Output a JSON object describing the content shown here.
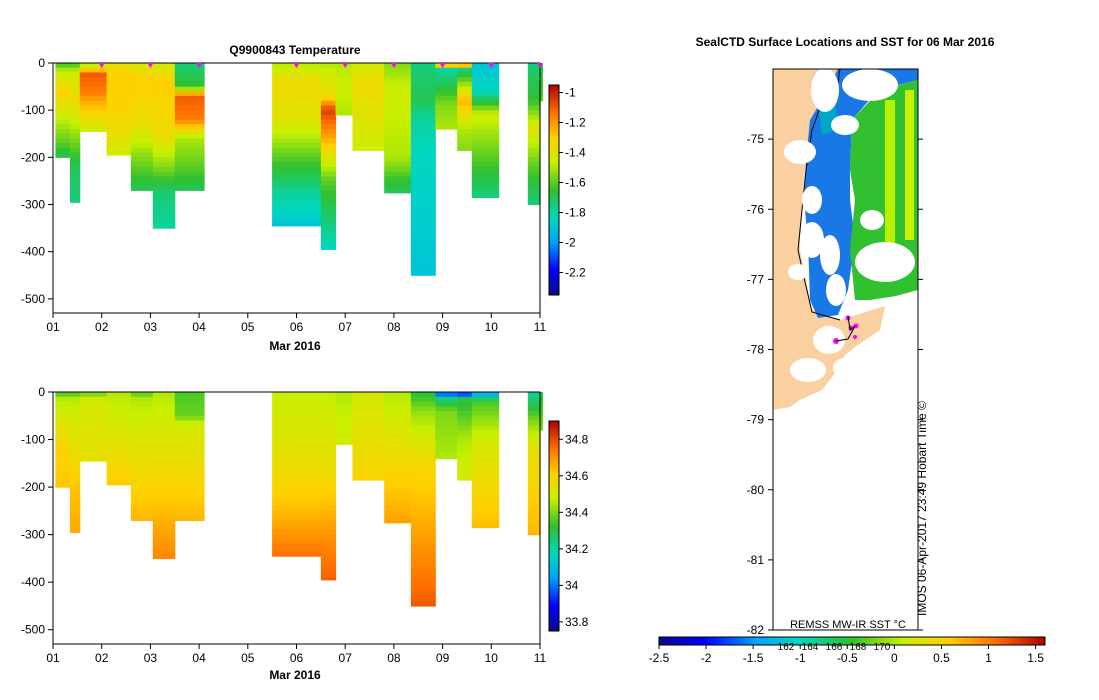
{
  "chart_data": [
    {
      "type": "heatmap",
      "title": "Q9900843  Temperature",
      "xlabel": "Mar 2016",
      "ylabel": "",
      "xlim": [
        1,
        11
      ],
      "ylim": [
        -530,
        0
      ],
      "x_tick_labels": [
        "01",
        "02",
        "03",
        "04",
        "05",
        "06",
        "07",
        "08",
        "09",
        "10",
        "11"
      ],
      "y_tick_labels": [
        "0",
        "-100",
        "-200",
        "-300",
        "-400",
        "-500"
      ],
      "colorbar": {
        "min": -2.35,
        "max": -0.95,
        "tick_labels": [
          "-1",
          "-1.2",
          "-1.4",
          "-1.6",
          "-1.8",
          "-2",
          "-2.2"
        ]
      },
      "profiles": [
        {
          "x0": 1.05,
          "x1": 1.35,
          "depth": 200,
          "levels": [
            [
              0,
              -1.65
            ],
            [
              15,
              -1.5
            ],
            [
              60,
              -1.3
            ],
            [
              110,
              -1.45
            ],
            [
              170,
              -1.6
            ],
            [
              200,
              -1.7
            ]
          ]
        },
        {
          "x0": 1.35,
          "x1": 1.55,
          "depth": 295,
          "levels": [
            [
              0,
              -1.65
            ],
            [
              20,
              -1.45
            ],
            [
              80,
              -1.35
            ],
            [
              140,
              -1.5
            ],
            [
              220,
              -1.7
            ],
            [
              295,
              -1.75
            ]
          ]
        },
        {
          "x0": 1.55,
          "x1": 2.1,
          "depth": 145,
          "levels": [
            [
              0,
              -1.55
            ],
            [
              25,
              -1.1
            ],
            [
              60,
              -1.15
            ],
            [
              100,
              -1.3
            ],
            [
              145,
              -1.45
            ]
          ]
        },
        {
          "x0": 2.1,
          "x1": 2.6,
          "depth": 195,
          "levels": [
            [
              0,
              -1.4
            ],
            [
              20,
              -1.3
            ],
            [
              80,
              -1.3
            ],
            [
              140,
              -1.35
            ],
            [
              195,
              -1.45
            ]
          ]
        },
        {
          "x0": 2.6,
          "x1": 3.05,
          "depth": 270,
          "levels": [
            [
              0,
              -1.45
            ],
            [
              30,
              -1.3
            ],
            [
              120,
              -1.35
            ],
            [
              200,
              -1.55
            ],
            [
              270,
              -1.7
            ]
          ]
        },
        {
          "x0": 3.05,
          "x1": 3.5,
          "depth": 350,
          "levels": [
            [
              0,
              -1.45
            ],
            [
              40,
              -1.3
            ],
            [
              150,
              -1.35
            ],
            [
              220,
              -1.55
            ],
            [
              280,
              -1.75
            ],
            [
              350,
              -1.8
            ]
          ]
        },
        {
          "x0": 3.5,
          "x1": 4.1,
          "depth": 270,
          "levels": [
            [
              0,
              -1.75
            ],
            [
              50,
              -1.65
            ],
            [
              70,
              -1.1
            ],
            [
              120,
              -1.15
            ],
            [
              160,
              -1.5
            ],
            [
              220,
              -1.6
            ],
            [
              270,
              -1.7
            ]
          ]
        },
        {
          "x0": 5.5,
          "x1": 6.5,
          "depth": 345,
          "levels": [
            [
              0,
              -1.5
            ],
            [
              40,
              -1.35
            ],
            [
              120,
              -1.4
            ],
            [
              200,
              -1.6
            ],
            [
              280,
              -1.8
            ],
            [
              345,
              -1.9
            ]
          ]
        },
        {
          "x0": 6.5,
          "x1": 6.8,
          "depth": 395,
          "levels": [
            [
              0,
              -1.5
            ],
            [
              70,
              -1.35
            ],
            [
              100,
              -1.05
            ],
            [
              150,
              -1.2
            ],
            [
              250,
              -1.6
            ],
            [
              395,
              -1.85
            ]
          ]
        },
        {
          "x0": 6.8,
          "x1": 7.15,
          "depth": 110,
          "levels": [
            [
              0,
              -1.5
            ],
            [
              50,
              -1.45
            ],
            [
              110,
              -1.5
            ]
          ]
        },
        {
          "x0": 7.15,
          "x1": 7.8,
          "depth": 185,
          "levels": [
            [
              0,
              -1.45
            ],
            [
              40,
              -1.35
            ],
            [
              120,
              -1.4
            ],
            [
              185,
              -1.45
            ]
          ]
        },
        {
          "x0": 7.8,
          "x1": 8.35,
          "depth": 275,
          "levels": [
            [
              0,
              -1.55
            ],
            [
              60,
              -1.45
            ],
            [
              200,
              -1.5
            ],
            [
              250,
              -1.65
            ],
            [
              275,
              -1.7
            ]
          ]
        },
        {
          "x0": 8.35,
          "x1": 8.85,
          "depth": 450,
          "levels": [
            [
              0,
              -1.75
            ],
            [
              80,
              -1.7
            ],
            [
              120,
              -1.8
            ],
            [
              200,
              -1.85
            ],
            [
              450,
              -1.9
            ]
          ]
        },
        {
          "x0": 8.85,
          "x1": 9.3,
          "depth": 140,
          "levels": [
            [
              0,
              -1.05
            ],
            [
              15,
              -1.8
            ],
            [
              90,
              -1.55
            ],
            [
              140,
              -1.5
            ]
          ]
        },
        {
          "x0": 9.3,
          "x1": 9.6,
          "depth": 185,
          "levels": [
            [
              0,
              -1.05
            ],
            [
              15,
              -1.75
            ],
            [
              80,
              -1.25
            ],
            [
              140,
              -1.5
            ],
            [
              185,
              -1.55
            ]
          ]
        },
        {
          "x0": 9.6,
          "x1": 10.15,
          "depth": 285,
          "levels": [
            [
              0,
              -1.9
            ],
            [
              60,
              -1.85
            ],
            [
              110,
              -1.45
            ],
            [
              200,
              -1.6
            ],
            [
              285,
              -1.75
            ]
          ]
        },
        {
          "x0": 10.75,
          "x1": 11.0,
          "depth": 300,
          "levels": [
            [
              0,
              -1.75
            ],
            [
              80,
              -1.65
            ],
            [
              140,
              -1.4
            ],
            [
              220,
              -1.6
            ],
            [
              300,
              -1.75
            ]
          ]
        },
        {
          "x0": 11.0,
          "x1": 11.05,
          "depth": 80,
          "levels": [
            [
              0,
              -1.7
            ],
            [
              80,
              -1.6
            ]
          ]
        }
      ]
    },
    {
      "type": "heatmap",
      "title": "",
      "xlabel": "Mar 2016",
      "ylabel": "",
      "xlim": [
        1,
        11
      ],
      "ylim": [
        -530,
        0
      ],
      "x_tick_labels": [
        "01",
        "02",
        "03",
        "04",
        "05",
        "06",
        "07",
        "08",
        "09",
        "10",
        "11"
      ],
      "y_tick_labels": [
        "0",
        "-100",
        "-200",
        "-300",
        "-400",
        "-500"
      ],
      "colorbar": {
        "min": 33.75,
        "max": 34.9,
        "tick_labels": [
          "34.8",
          "34.6",
          "34.4",
          "34.2",
          "34",
          "33.8"
        ]
      },
      "profiles": [
        {
          "x0": 1.05,
          "x1": 1.35,
          "depth": 200,
          "levels": [
            [
              0,
              34.3
            ],
            [
              10,
              34.45
            ],
            [
              120,
              34.6
            ],
            [
              200,
              34.63
            ]
          ]
        },
        {
          "x0": 1.35,
          "x1": 1.55,
          "depth": 295,
          "levels": [
            [
              0,
              34.3
            ],
            [
              10,
              34.45
            ],
            [
              200,
              34.63
            ],
            [
              295,
              34.67
            ]
          ]
        },
        {
          "x0": 1.55,
          "x1": 2.1,
          "depth": 145,
          "levels": [
            [
              0,
              34.35
            ],
            [
              15,
              34.5
            ],
            [
              145,
              34.55
            ]
          ]
        },
        {
          "x0": 2.1,
          "x1": 2.6,
          "depth": 195,
          "levels": [
            [
              0,
              34.45
            ],
            [
              120,
              34.55
            ],
            [
              195,
              34.62
            ]
          ]
        },
        {
          "x0": 2.6,
          "x1": 3.05,
          "depth": 270,
          "levels": [
            [
              0,
              34.35
            ],
            [
              15,
              34.45
            ],
            [
              200,
              34.6
            ],
            [
              270,
              34.65
            ]
          ]
        },
        {
          "x0": 3.05,
          "x1": 3.5,
          "depth": 350,
          "levels": [
            [
              0,
              34.45
            ],
            [
              200,
              34.6
            ],
            [
              300,
              34.68
            ],
            [
              350,
              34.72
            ]
          ]
        },
        {
          "x0": 3.5,
          "x1": 4.1,
          "depth": 270,
          "levels": [
            [
              0,
              34.35
            ],
            [
              50,
              34.38
            ],
            [
              70,
              34.5
            ],
            [
              200,
              34.6
            ],
            [
              270,
              34.65
            ]
          ]
        },
        {
          "x0": 5.5,
          "x1": 6.5,
          "depth": 345,
          "levels": [
            [
              0,
              34.48
            ],
            [
              100,
              34.52
            ],
            [
              250,
              34.64
            ],
            [
              345,
              34.75
            ]
          ]
        },
        {
          "x0": 6.5,
          "x1": 6.8,
          "depth": 395,
          "levels": [
            [
              0,
              34.48
            ],
            [
              150,
              34.55
            ],
            [
              300,
              34.7
            ],
            [
              395,
              34.77
            ]
          ]
        },
        {
          "x0": 6.8,
          "x1": 7.15,
          "depth": 110,
          "levels": [
            [
              0,
              34.45
            ],
            [
              110,
              34.5
            ]
          ]
        },
        {
          "x0": 7.15,
          "x1": 7.8,
          "depth": 185,
          "levels": [
            [
              0,
              34.5
            ],
            [
              100,
              34.55
            ],
            [
              185,
              34.6
            ]
          ]
        },
        {
          "x0": 7.8,
          "x1": 8.35,
          "depth": 275,
          "levels": [
            [
              0,
              34.45
            ],
            [
              150,
              34.58
            ],
            [
              275,
              34.68
            ]
          ]
        },
        {
          "x0": 8.35,
          "x1": 8.85,
          "depth": 450,
          "levels": [
            [
              0,
              34.3
            ],
            [
              40,
              34.42
            ],
            [
              150,
              34.58
            ],
            [
              300,
              34.68
            ],
            [
              450,
              34.78
            ]
          ]
        },
        {
          "x0": 8.85,
          "x1": 9.3,
          "depth": 140,
          "levels": [
            [
              0,
              33.8
            ],
            [
              10,
              34.2
            ],
            [
              40,
              34.4
            ],
            [
              140,
              34.45
            ]
          ]
        },
        {
          "x0": 9.3,
          "x1": 9.6,
          "depth": 185,
          "levels": [
            [
              0,
              33.8
            ],
            [
              15,
              34.3
            ],
            [
              100,
              34.45
            ],
            [
              185,
              34.5
            ]
          ]
        },
        {
          "x0": 9.6,
          "x1": 10.15,
          "depth": 285,
          "levels": [
            [
              0,
              34.0
            ],
            [
              20,
              34.35
            ],
            [
              100,
              34.5
            ],
            [
              285,
              34.64
            ]
          ]
        },
        {
          "x0": 10.75,
          "x1": 11.0,
          "depth": 300,
          "levels": [
            [
              0,
              34.2
            ],
            [
              60,
              34.4
            ],
            [
              120,
              34.55
            ],
            [
              300,
              34.65
            ]
          ]
        },
        {
          "x0": 11.0,
          "x1": 11.05,
          "depth": 80,
          "levels": [
            [
              0,
              34.3
            ],
            [
              80,
              34.4
            ]
          ]
        }
      ]
    },
    {
      "type": "heatmap",
      "title": "SealCTD Surface Locations and SST for 06 Mar 2016",
      "xlabel": "",
      "ylabel": "",
      "ylim": [
        -82,
        -74
      ],
      "y_tick_labels": [
        "-75",
        "-76",
        "-77",
        "-78",
        "-79",
        "-80",
        "-81",
        "-82"
      ],
      "colorbar": {
        "min": -2.5,
        "max": 1.6,
        "tick_labels": [
          "-2.5",
          "-2",
          "-1.5",
          "-1",
          "-0.5",
          "0",
          "0.5",
          "1",
          "1.5"
        ],
        "overlay_labels": [
          "162",
          "164",
          "166",
          "168",
          "170"
        ]
      },
      "annotations": [
        "REMSS MW-IR SST °C",
        "IMOS 06-Apr-2017 23:49 Hobart Time ©"
      ]
    }
  ]
}
